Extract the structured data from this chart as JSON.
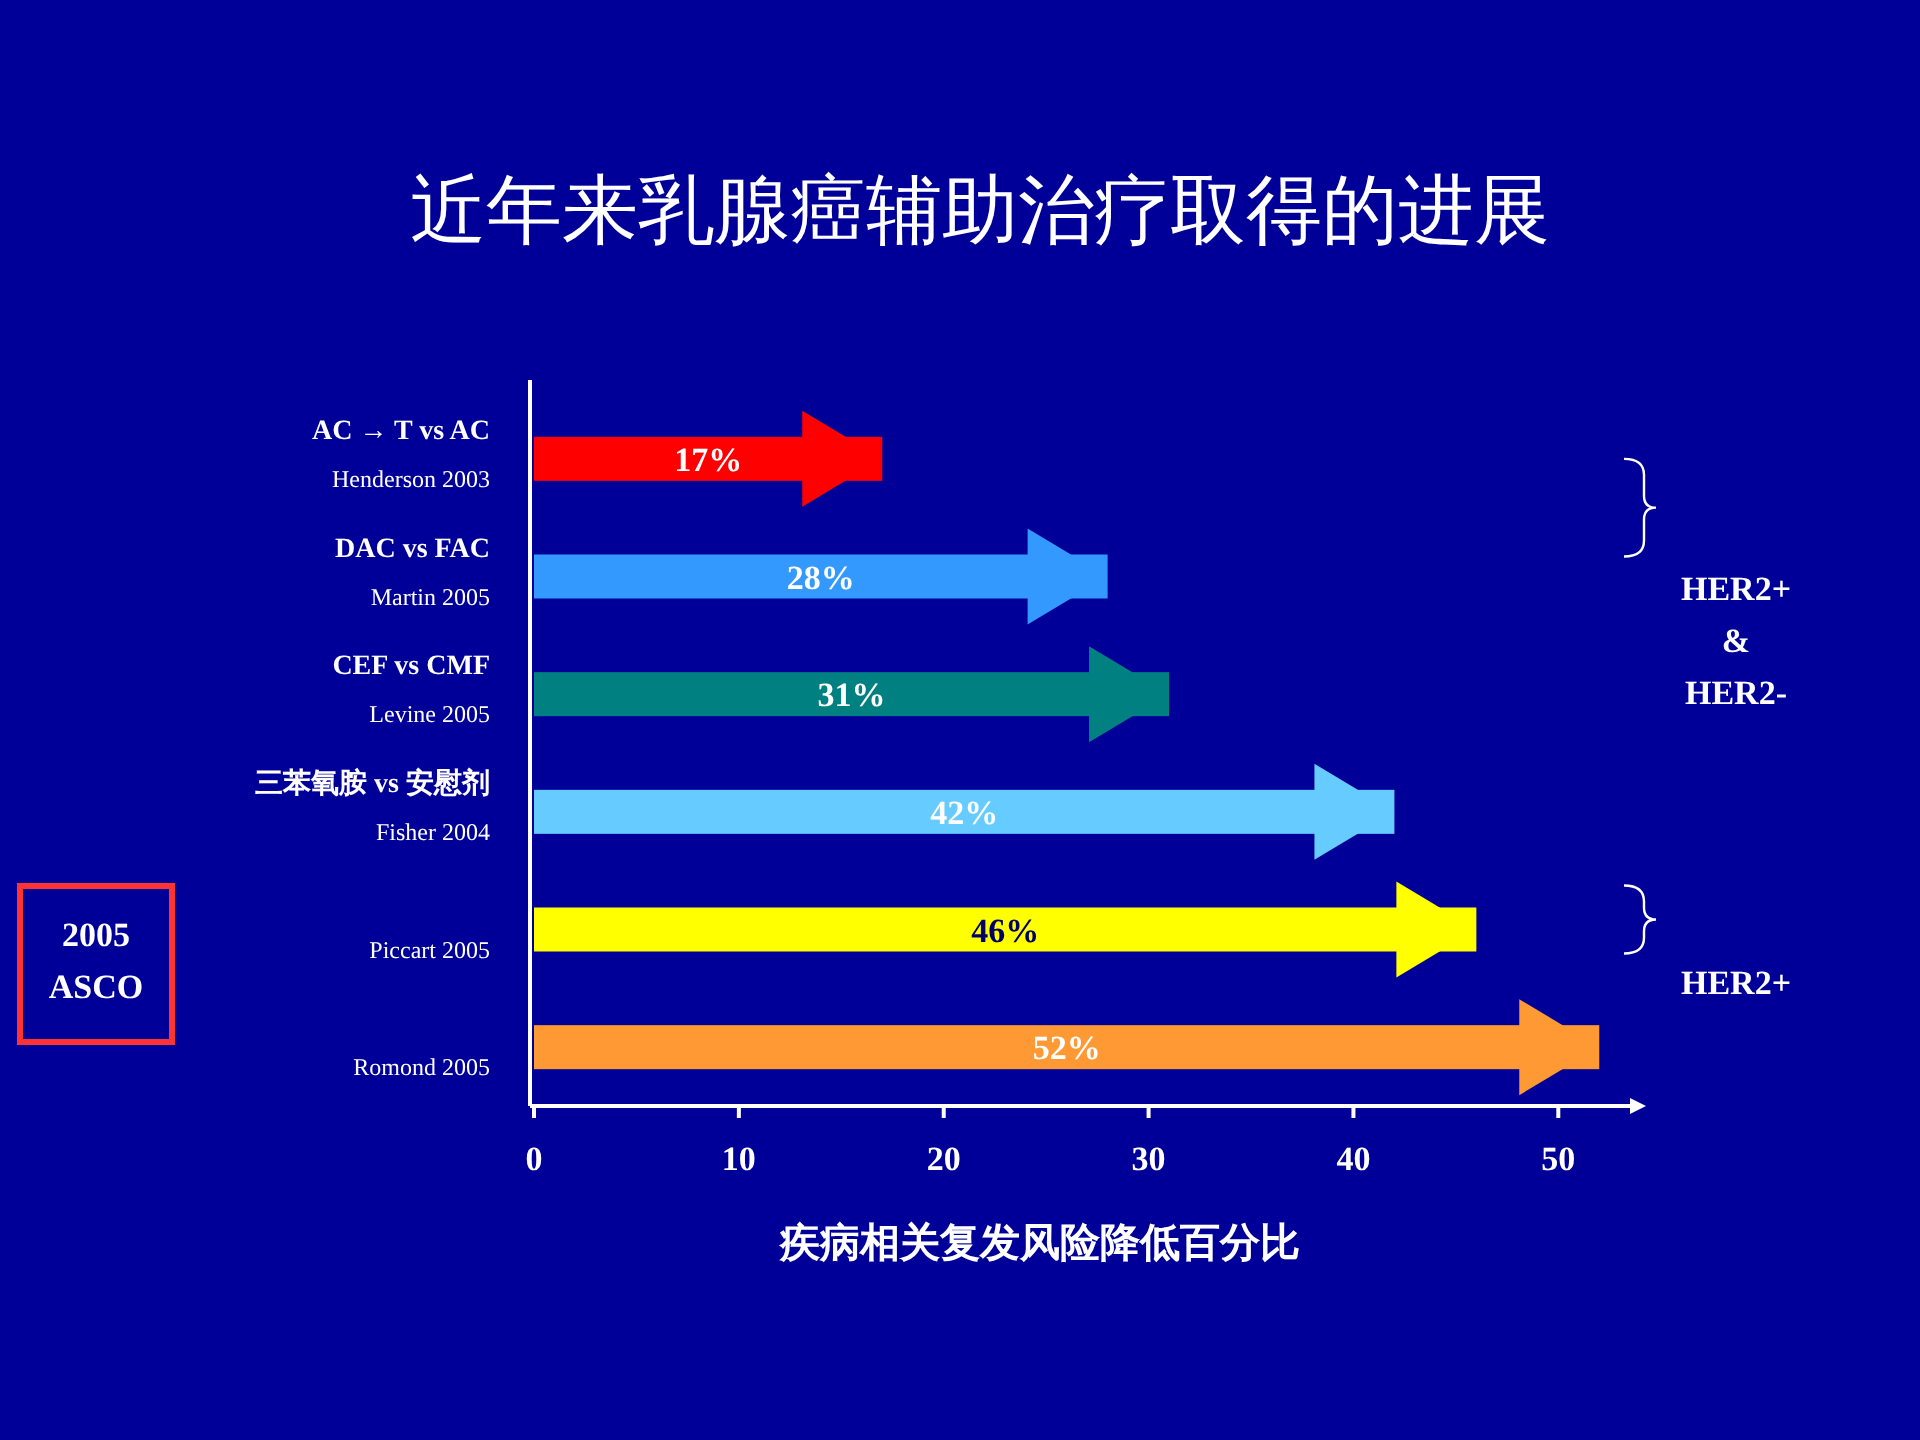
{
  "chart_data": {
    "type": "bar",
    "orientation": "horizontal",
    "title": "近年来乳腺癌辅助治疗取得的进展",
    "xlabel": "疾病相关复发风险降低百分比",
    "categories": [
      "AC → T vs AC\nHenderson 2003",
      "DAC vs FAC\nMartin 2005",
      "CEF vs CMF\nLevine 2005",
      "三苯氧胺 vs 安慰剂\nFisher 2004",
      "Piccart 2005",
      "Romond 2005"
    ],
    "values": [
      17,
      28,
      31,
      42,
      46,
      52
    ],
    "value_labels": [
      "17%",
      "28%",
      "31%",
      "42%",
      "46%",
      "52%"
    ],
    "colors": [
      "#ff0000",
      "#3399ff",
      "#008080",
      "#66ccff",
      "#ffff00",
      "#ff9933"
    ],
    "xlim": [
      0,
      53.5
    ],
    "xticks": [
      0,
      10,
      20,
      30,
      40,
      50
    ],
    "annotations": [
      "HER2+\n&\nHER2-",
      "HER2+",
      "2005\nASCO"
    ]
  }
}
